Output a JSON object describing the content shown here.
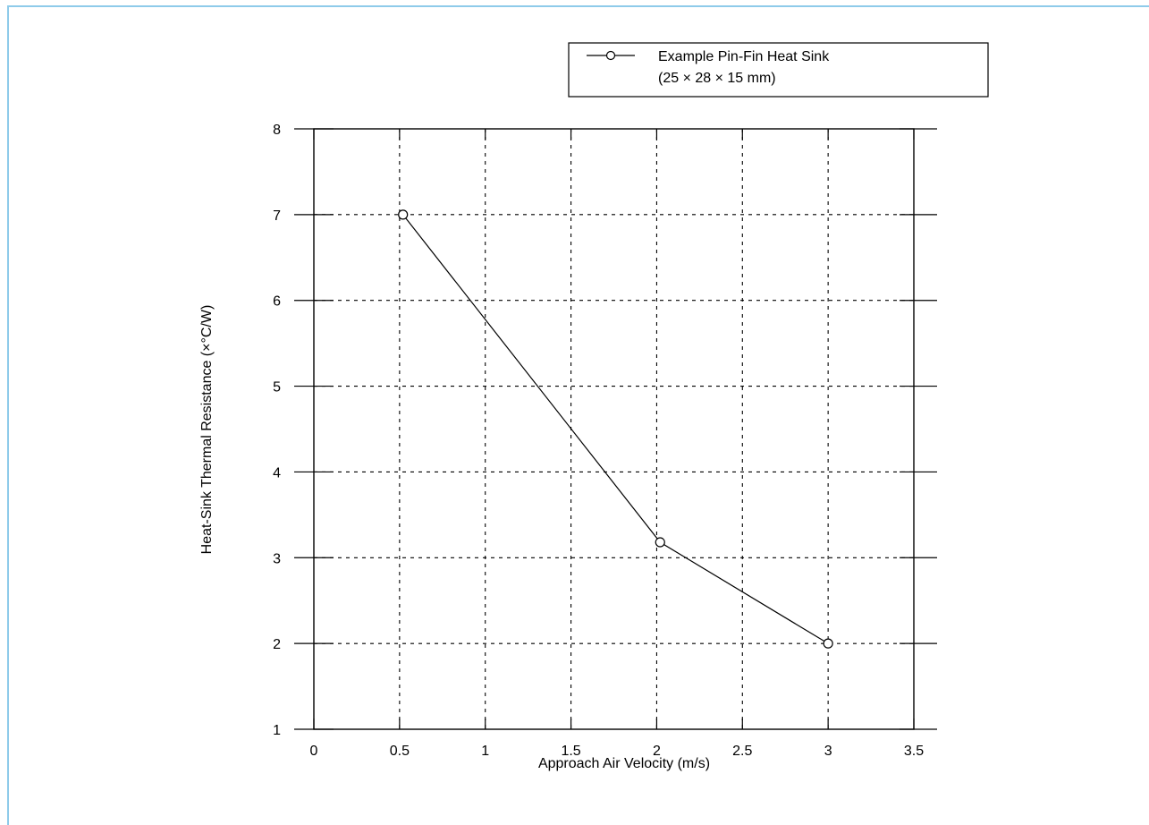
{
  "chart_data": {
    "type": "line",
    "xlabel": "Approach Air Velocity (m/s)",
    "ylabel": "Heat-Sink Thermal Resistance (×°C/W)",
    "xlim": [
      0,
      3.5
    ],
    "ylim": [
      1,
      8
    ],
    "x_ticks": [
      "0",
      "0.5",
      "1",
      "1.5",
      "2",
      "2.5",
      "3",
      "3.5"
    ],
    "y_ticks": [
      "1",
      "2",
      "3",
      "4",
      "5",
      "6",
      "7",
      "8"
    ],
    "grid": true,
    "grid_style": "dashed",
    "legend_position": "top-right",
    "series": [
      {
        "name": "Example Pin-Fin Heat Sink",
        "name_line2": "(25 × 28 × 15 mm)",
        "marker": "open-circle",
        "color": "#000000",
        "x": [
          0.52,
          2.02,
          3.0
        ],
        "y": [
          7.0,
          3.18,
          2.0
        ]
      }
    ]
  }
}
